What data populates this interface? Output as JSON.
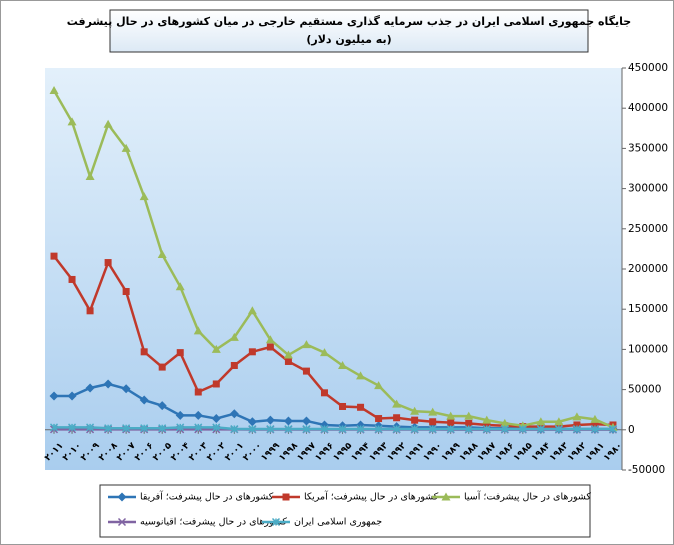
{
  "chart_data": {
    "type": "line",
    "title": "جایگاه جمهوری اسلامی ایران در جذب سرمایه گذاری مستقیم خارجی در میان کشورهای در حال پیشرفت",
    "subtitle": "(به میلیون دلار)",
    "categories": [
      "۲۰۱۱",
      "۲۰۱۰",
      "۲۰۰۹",
      "۲۰۰۸",
      "۲۰۰۷",
      "۲۰۰۶",
      "۲۰۰۵",
      "۲۰۰۴",
      "۲۰۰۳",
      "۲۰۰۲",
      "۲۰۰۱",
      "۲۰۰۰",
      "۱۹۹۹",
      "۱۹۹۸",
      "۱۹۹۷",
      "۱۹۹۶",
      "۱۹۹۵",
      "۱۹۹۴",
      "۱۹۹۳",
      "۱۹۹۲",
      "۱۹۹۱",
      "۱۹۹۰",
      "۱۹۸۹",
      "۱۹۸۸",
      "۱۹۸۷",
      "۱۹۸۶",
      "۱۹۸۵",
      "۱۹۸۴",
      "۱۹۸۳",
      "۱۹۸۲",
      "۱۹۸۱",
      "۱۹۸۰"
    ],
    "series": [
      {
        "name": "کشورهای در حال پیشرفت؛ آفریقا",
        "color": "#2e75b6",
        "marker": "diamond",
        "values": [
          42000,
          42000,
          52000,
          57000,
          51000,
          37000,
          30000,
          18000,
          18000,
          14000,
          20000,
          10000,
          12000,
          11000,
          11000,
          6000,
          5000,
          6000,
          5000,
          4000,
          3000,
          3000,
          3000,
          3000,
          2000,
          2000,
          2000,
          1000,
          1000,
          1000,
          1000,
          1000
        ]
      },
      {
        "name": "کشورهای در حال پیشرفت؛ آمریکا",
        "color": "#c0392b",
        "marker": "square",
        "values": [
          216000,
          187000,
          148000,
          208000,
          172000,
          97000,
          78000,
          96000,
          47000,
          57000,
          80000,
          97000,
          103000,
          85000,
          73000,
          46000,
          29000,
          28000,
          14000,
          15000,
          12000,
          10000,
          9000,
          8000,
          6000,
          5000,
          4000,
          4000,
          4000,
          6000,
          7000,
          6000
        ]
      },
      {
        "name": "کشورهای در حال پیشرفت؛ آسیا",
        "color": "#9bbb59",
        "marker": "triangle",
        "values": [
          422000,
          383000,
          315000,
          380000,
          350000,
          290000,
          218000,
          178000,
          123000,
          100000,
          115000,
          148000,
          112000,
          93000,
          106000,
          96000,
          80000,
          67000,
          55000,
          32000,
          23000,
          22000,
          17000,
          17000,
          12000,
          8000,
          5000,
          10000,
          10000,
          16000,
          13000,
          3000
        ]
      },
      {
        "name": "کشورهای در حال پیشرفت؛ اقیانوسیه",
        "color": "#8064a2",
        "marker": "x",
        "values": [
          500,
          500,
          500,
          500,
          500,
          500,
          500,
          500,
          500,
          500,
          500,
          400,
          400,
          400,
          400,
          300,
          300,
          300,
          300,
          300,
          300,
          300,
          200,
          200,
          200,
          200,
          200,
          200,
          200,
          200,
          200,
          200
        ]
      },
      {
        "name": "جمهوری اسلامی ایران",
        "color": "#4bacc6",
        "marker": "star",
        "values": [
          3000,
          3000,
          3000,
          2000,
          2000,
          2000,
          2000,
          3000,
          3000,
          3000,
          1000,
          1000,
          1000,
          1000,
          1000,
          1000,
          1000,
          1000,
          1000,
          1000,
          1000,
          1000,
          1000,
          1000,
          1000,
          1000,
          1000,
          1000,
          1000,
          1000,
          1000,
          1000
        ]
      }
    ],
    "ylim": [
      -50000,
      450000
    ],
    "yticks": [
      -50000,
      0,
      50000,
      100000,
      150000,
      200000,
      250000,
      300000,
      350000,
      400000,
      450000
    ],
    "grid": false
  }
}
